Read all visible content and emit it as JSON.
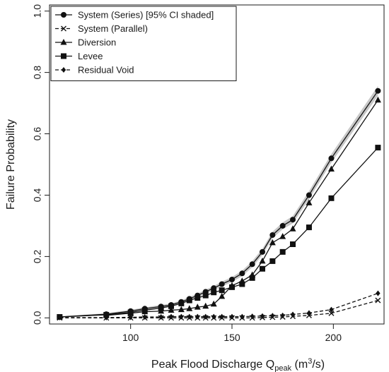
{
  "chart_data": {
    "type": "line",
    "xlabel": "Peak Flood Discharge Q",
    "xlabel_sub": "peak",
    "xlabel_unit_pre": " (m",
    "xlabel_unit_sup": "3",
    "xlabel_unit_post": "/s)",
    "ylabel": "Failure Probability",
    "xlim": [
      60,
      225
    ],
    "ylim": [
      -0.02,
      1.02
    ],
    "xticks": [
      100,
      150,
      200
    ],
    "yticks": [
      0.0,
      0.2,
      0.4,
      0.6,
      0.8,
      1.0
    ],
    "xtick_labels": [
      "100",
      "150",
      "200"
    ],
    "ytick_labels": [
      "0.0",
      "0.2",
      "0.4",
      "0.6",
      "0.8",
      "1.0"
    ],
    "legend_position": "top-left",
    "grid": false,
    "ci_band_color": "#c8c8c8",
    "series": [
      {
        "name": "System (Series)",
        "legend_extra": "[95% CI shaded]",
        "marker": "circle",
        "line": "solid",
        "x": [
          65,
          88,
          100,
          107,
          115,
          120,
          125,
          129,
          133,
          137,
          141,
          145,
          150,
          155,
          160,
          165,
          170,
          175,
          180,
          188,
          199,
          222
        ],
        "y": [
          0.003,
          0.012,
          0.022,
          0.03,
          0.037,
          0.042,
          0.052,
          0.062,
          0.073,
          0.085,
          0.097,
          0.11,
          0.125,
          0.145,
          0.175,
          0.215,
          0.27,
          0.3,
          0.32,
          0.4,
          0.52,
          0.74
        ],
        "ci_halfwidth": [
          0.002,
          0.003,
          0.004,
          0.004,
          0.005,
          0.005,
          0.005,
          0.006,
          0.006,
          0.007,
          0.007,
          0.008,
          0.008,
          0.009,
          0.01,
          0.01,
          0.011,
          0.011,
          0.012,
          0.013,
          0.014,
          0.016
        ]
      },
      {
        "name": "System (Parallel)",
        "marker": "cross",
        "line": "dashed",
        "x": [
          65,
          88,
          100,
          107,
          115,
          120,
          125,
          129,
          133,
          137,
          141,
          145,
          150,
          155,
          160,
          165,
          170,
          175,
          180,
          188,
          199,
          222
        ],
        "y": [
          0.0,
          0.0,
          0.0,
          0.0,
          0.0,
          0.0,
          0.0,
          0.0,
          0.0,
          0.0,
          0.0,
          0.0,
          0.0,
          0.0,
          0.0,
          0.001,
          0.002,
          0.003,
          0.005,
          0.008,
          0.015,
          0.057
        ]
      },
      {
        "name": "Diversion",
        "marker": "triangle",
        "line": "solid",
        "x": [
          88,
          100,
          107,
          115,
          120,
          125,
          129,
          133,
          137,
          141,
          145,
          150,
          155,
          160,
          165,
          170,
          175,
          180,
          188,
          199,
          222
        ],
        "y": [
          0.008,
          0.015,
          0.02,
          0.022,
          0.025,
          0.027,
          0.03,
          0.035,
          0.038,
          0.045,
          0.07,
          0.105,
          0.12,
          0.14,
          0.185,
          0.245,
          0.265,
          0.29,
          0.375,
          0.485,
          0.71
        ]
      },
      {
        "name": "Levee",
        "marker": "square",
        "line": "solid",
        "x": [
          65,
          88,
          100,
          107,
          115,
          120,
          125,
          129,
          133,
          137,
          141,
          145,
          150,
          155,
          160,
          165,
          170,
          175,
          180,
          188,
          199,
          222
        ],
        "y": [
          0.003,
          0.01,
          0.018,
          0.025,
          0.032,
          0.038,
          0.047,
          0.057,
          0.065,
          0.073,
          0.083,
          0.09,
          0.1,
          0.11,
          0.13,
          0.16,
          0.185,
          0.215,
          0.24,
          0.295,
          0.39,
          0.555
        ]
      },
      {
        "name": "Residual Void",
        "marker": "diamond",
        "line": "dashed",
        "x": [
          65,
          88,
          100,
          107,
          115,
          120,
          125,
          129,
          133,
          137,
          141,
          145,
          150,
          155,
          160,
          165,
          170,
          175,
          180,
          188,
          199,
          222
        ],
        "y": [
          0.001,
          0.001,
          0.002,
          0.003,
          0.003,
          0.004,
          0.004,
          0.004,
          0.004,
          0.004,
          0.004,
          0.004,
          0.004,
          0.004,
          0.005,
          0.006,
          0.007,
          0.008,
          0.011,
          0.016,
          0.027,
          0.08
        ]
      }
    ]
  }
}
